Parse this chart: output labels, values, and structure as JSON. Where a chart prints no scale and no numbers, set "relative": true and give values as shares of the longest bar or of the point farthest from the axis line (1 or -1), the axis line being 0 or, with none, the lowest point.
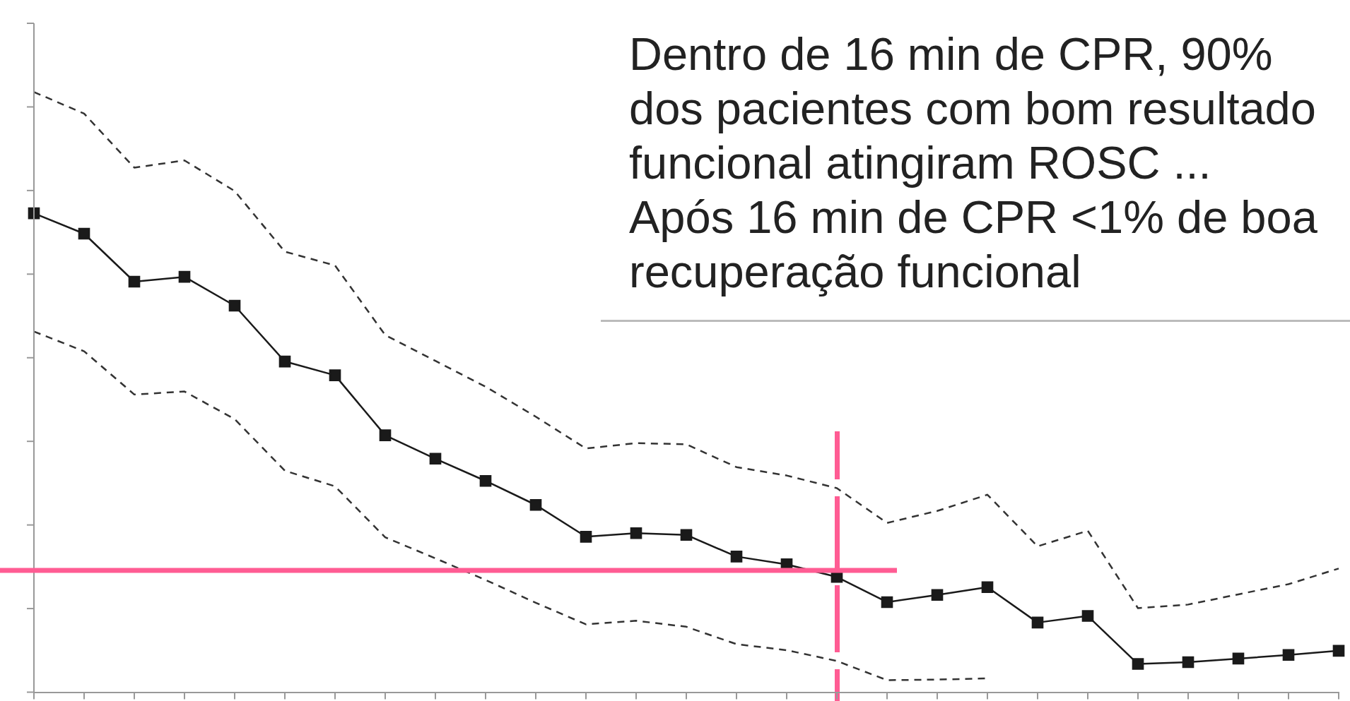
{
  "chart_data": {
    "type": "line",
    "relative": true,
    "grid": false,
    "legend": false,
    "categories": [
      null,
      null,
      null,
      null,
      null,
      null,
      null,
      null,
      null,
      null,
      null,
      null,
      null,
      null,
      null,
      null,
      null,
      null,
      null,
      null,
      null,
      null,
      null,
      null,
      null,
      null,
      null
    ],
    "series": [
      {
        "color": "#333333",
        "marker": "none",
        "line_style": "dashed",
        "values": [
          1,
          0.964,
          0.874,
          0.886,
          0.835,
          0.734,
          0.711,
          0.595,
          0.552,
          0.509,
          0.459,
          0.406,
          0.415,
          0.413,
          0.375,
          0.361,
          0.34,
          0.282,
          0.302,
          0.329,
          0.243,
          0.269,
          0.14,
          0.146,
          0.163,
          0.18,
          0.206
        ]
      },
      {
        "color": "#1a1a1a",
        "marker": "square",
        "line_style": "solid",
        "values": [
          0.798,
          0.764,
          0.684,
          0.692,
          0.644,
          0.551,
          0.528,
          0.428,
          0.389,
          0.352,
          0.312,
          0.259,
          0.265,
          0.262,
          0.226,
          0.213,
          0.192,
          0.15,
          0.162,
          0.175,
          0.116,
          0.127,
          0.047,
          0.05,
          0.056,
          0.062,
          0.069
        ]
      },
      {
        "color": "#333333",
        "marker": "none",
        "line_style": "dashed",
        "values": [
          0.601,
          0.568,
          0.496,
          0.501,
          0.455,
          0.369,
          0.343,
          0.258,
          0.223,
          0.187,
          0.149,
          0.113,
          0.119,
          0.109,
          0.08,
          0.07,
          0.052,
          0.02,
          0.021,
          0.023,
          null,
          null,
          null,
          null,
          null,
          null,
          null
        ]
      }
    ],
    "ref_lines": [
      {
        "axis": "y",
        "value": 0.203,
        "color": "#ff5c93"
      }
    ],
    "annotations": [
      "Dentro de 16 min de CPR, 90% dos pacientes com bom resultado funcional atingiram ROSC ...",
      "Após 16 min de CPR <1% de boa recuperação funcional"
    ]
  }
}
